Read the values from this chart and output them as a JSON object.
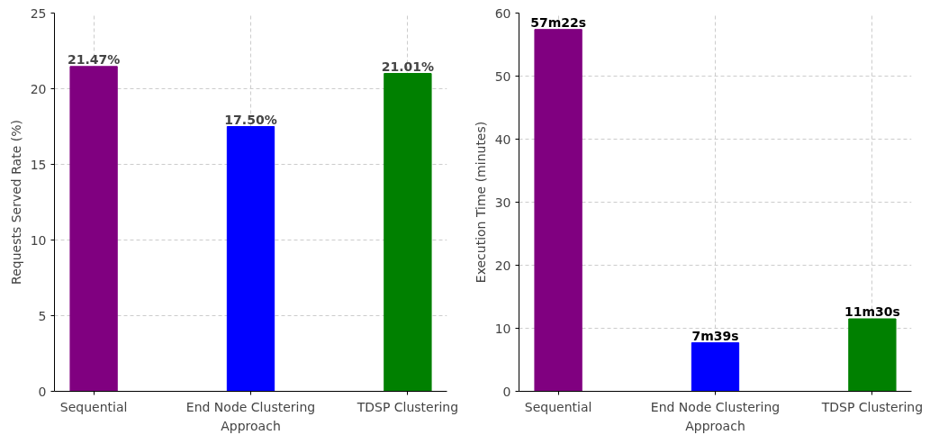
{
  "chart_data": [
    {
      "type": "bar",
      "xlabel": "Approach",
      "ylabel": "Requests Served Rate (%)",
      "categories": [
        "Sequential",
        "End Node Clustering",
        "TDSP Clustering"
      ],
      "values": [
        21.47,
        17.5,
        21.01
      ],
      "colors": [
        "#800080",
        "#0000ff",
        "#008000"
      ],
      "value_labels": [
        "21.47%",
        "17.50%",
        "21.01%"
      ],
      "ylim": [
        0,
        25
      ],
      "yticks": [
        0,
        5,
        10,
        15,
        20,
        25
      ],
      "grid": true
    },
    {
      "type": "bar",
      "xlabel": "Approach",
      "ylabel": "Execution Time (minutes)",
      "categories": [
        "Sequential",
        "End Node Clustering",
        "TDSP Clustering"
      ],
      "values": [
        57.4,
        7.7,
        11.5
      ],
      "colors": [
        "#800080",
        "#0000ff",
        "#008000"
      ],
      "annotations": [
        {
          "text": "57m22s",
          "x": "Sequential",
          "y": 57.4
        },
        {
          "text": "7m39s",
          "x": "End Node Clustering",
          "y": 7.7
        },
        {
          "text": "11m30s",
          "x": "TDSP Clustering",
          "y": 11.5
        }
      ],
      "ylim": [
        0,
        60
      ],
      "yticks": [
        0,
        10,
        20,
        30,
        40,
        50,
        60
      ],
      "grid": true
    }
  ]
}
